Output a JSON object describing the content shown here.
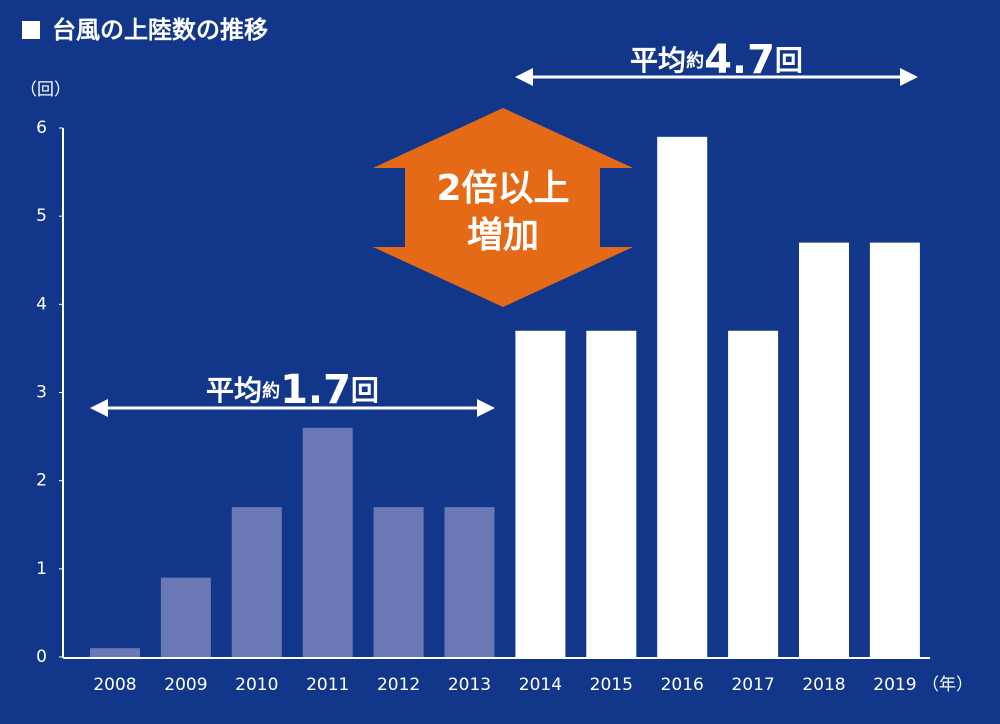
{
  "chart_data": {
    "type": "bar",
    "title": "台風の上陸数の推移",
    "y_unit": "（回）",
    "x_unit": "（年）",
    "categories": [
      "2008",
      "2009",
      "2010",
      "2011",
      "2012",
      "2013",
      "2014",
      "2015",
      "2016",
      "2017",
      "2018",
      "2019"
    ],
    "values": [
      0.1,
      0.9,
      1.7,
      2.6,
      1.7,
      1.7,
      3.7,
      3.7,
      5.9,
      3.7,
      4.7,
      4.7
    ],
    "colors": [
      "#6a79b5",
      "#6a79b5",
      "#6a79b5",
      "#6a79b5",
      "#6a79b5",
      "#6a79b5",
      "#ffffff",
      "#ffffff",
      "#ffffff",
      "#ffffff",
      "#ffffff",
      "#ffffff"
    ],
    "ylim": [
      0,
      6
    ],
    "yticks": [
      0,
      1,
      2,
      3,
      4,
      5,
      6
    ],
    "annotations": [
      {
        "parts": [
          "平均",
          "約",
          "1.7",
          "回"
        ]
      },
      {
        "parts": [
          "平均",
          "約",
          "4.7",
          "回"
        ]
      }
    ],
    "callout": [
      "2倍以上",
      "増加"
    ]
  }
}
